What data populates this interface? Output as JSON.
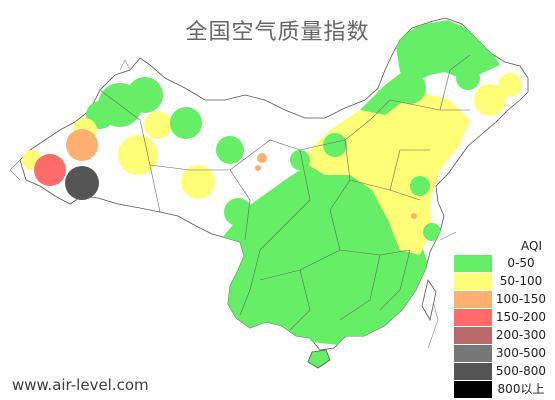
{
  "title": "全国空气质量指数",
  "website": "www.air-level.com",
  "legend": {
    "title": "AQI",
    "items": [
      {
        "label": "0-50",
        "color": "#66ee66"
      },
      {
        "label": "50-100",
        "color": "#ffff77"
      },
      {
        "label": "100-150",
        "color": "#ffb070"
      },
      {
        "label": "150-200",
        "color": "#ff6a6a"
      },
      {
        "label": "200-300",
        "color": "#b86a6a"
      },
      {
        "label": "300-500",
        "color": "#777777"
      },
      {
        "label": "500-800",
        "color": "#555555"
      },
      {
        "label": "800以上",
        "color": "#000000"
      }
    ]
  },
  "map_colors": {
    "good": "#66ee66",
    "moderate": "#ffff77",
    "unhealthy_sensitive": "#ffb070",
    "unhealthy": "#ff6a6a",
    "very_unhealthy": "#b86a6a",
    "hazardous": "#555555"
  }
}
